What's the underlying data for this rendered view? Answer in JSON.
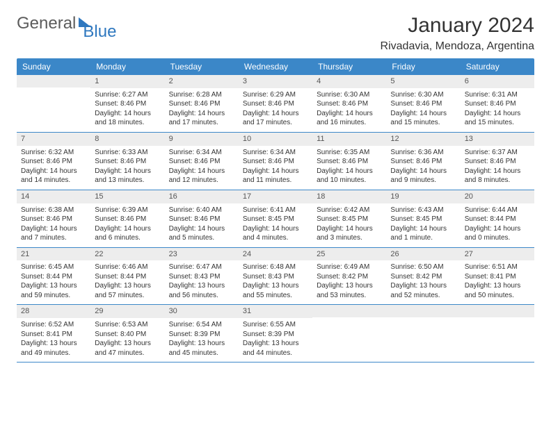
{
  "brand": {
    "first": "General",
    "second": "Blue"
  },
  "header": {
    "title": "January 2024",
    "location": "Rivadavia, Mendoza, Argentina"
  },
  "colors": {
    "header_bg": "#3b87c8",
    "row_border": "#3b87c8",
    "daynum_bg": "#ededed"
  },
  "daysOfWeek": [
    "Sunday",
    "Monday",
    "Tuesday",
    "Wednesday",
    "Thursday",
    "Friday",
    "Saturday"
  ],
  "weeks": [
    [
      {
        "n": "",
        "sr": "",
        "ss": "",
        "dl1": "",
        "dl2": ""
      },
      {
        "n": "1",
        "sr": "Sunrise: 6:27 AM",
        "ss": "Sunset: 8:46 PM",
        "dl1": "Daylight: 14 hours",
        "dl2": "and 18 minutes."
      },
      {
        "n": "2",
        "sr": "Sunrise: 6:28 AM",
        "ss": "Sunset: 8:46 PM",
        "dl1": "Daylight: 14 hours",
        "dl2": "and 17 minutes."
      },
      {
        "n": "3",
        "sr": "Sunrise: 6:29 AM",
        "ss": "Sunset: 8:46 PM",
        "dl1": "Daylight: 14 hours",
        "dl2": "and 17 minutes."
      },
      {
        "n": "4",
        "sr": "Sunrise: 6:30 AM",
        "ss": "Sunset: 8:46 PM",
        "dl1": "Daylight: 14 hours",
        "dl2": "and 16 minutes."
      },
      {
        "n": "5",
        "sr": "Sunrise: 6:30 AM",
        "ss": "Sunset: 8:46 PM",
        "dl1": "Daylight: 14 hours",
        "dl2": "and 15 minutes."
      },
      {
        "n": "6",
        "sr": "Sunrise: 6:31 AM",
        "ss": "Sunset: 8:46 PM",
        "dl1": "Daylight: 14 hours",
        "dl2": "and 15 minutes."
      }
    ],
    [
      {
        "n": "7",
        "sr": "Sunrise: 6:32 AM",
        "ss": "Sunset: 8:46 PM",
        "dl1": "Daylight: 14 hours",
        "dl2": "and 14 minutes."
      },
      {
        "n": "8",
        "sr": "Sunrise: 6:33 AM",
        "ss": "Sunset: 8:46 PM",
        "dl1": "Daylight: 14 hours",
        "dl2": "and 13 minutes."
      },
      {
        "n": "9",
        "sr": "Sunrise: 6:34 AM",
        "ss": "Sunset: 8:46 PM",
        "dl1": "Daylight: 14 hours",
        "dl2": "and 12 minutes."
      },
      {
        "n": "10",
        "sr": "Sunrise: 6:34 AM",
        "ss": "Sunset: 8:46 PM",
        "dl1": "Daylight: 14 hours",
        "dl2": "and 11 minutes."
      },
      {
        "n": "11",
        "sr": "Sunrise: 6:35 AM",
        "ss": "Sunset: 8:46 PM",
        "dl1": "Daylight: 14 hours",
        "dl2": "and 10 minutes."
      },
      {
        "n": "12",
        "sr": "Sunrise: 6:36 AM",
        "ss": "Sunset: 8:46 PM",
        "dl1": "Daylight: 14 hours",
        "dl2": "and 9 minutes."
      },
      {
        "n": "13",
        "sr": "Sunrise: 6:37 AM",
        "ss": "Sunset: 8:46 PM",
        "dl1": "Daylight: 14 hours",
        "dl2": "and 8 minutes."
      }
    ],
    [
      {
        "n": "14",
        "sr": "Sunrise: 6:38 AM",
        "ss": "Sunset: 8:46 PM",
        "dl1": "Daylight: 14 hours",
        "dl2": "and 7 minutes."
      },
      {
        "n": "15",
        "sr": "Sunrise: 6:39 AM",
        "ss": "Sunset: 8:46 PM",
        "dl1": "Daylight: 14 hours",
        "dl2": "and 6 minutes."
      },
      {
        "n": "16",
        "sr": "Sunrise: 6:40 AM",
        "ss": "Sunset: 8:46 PM",
        "dl1": "Daylight: 14 hours",
        "dl2": "and 5 minutes."
      },
      {
        "n": "17",
        "sr": "Sunrise: 6:41 AM",
        "ss": "Sunset: 8:45 PM",
        "dl1": "Daylight: 14 hours",
        "dl2": "and 4 minutes."
      },
      {
        "n": "18",
        "sr": "Sunrise: 6:42 AM",
        "ss": "Sunset: 8:45 PM",
        "dl1": "Daylight: 14 hours",
        "dl2": "and 3 minutes."
      },
      {
        "n": "19",
        "sr": "Sunrise: 6:43 AM",
        "ss": "Sunset: 8:45 PM",
        "dl1": "Daylight: 14 hours",
        "dl2": "and 1 minute."
      },
      {
        "n": "20",
        "sr": "Sunrise: 6:44 AM",
        "ss": "Sunset: 8:44 PM",
        "dl1": "Daylight: 14 hours",
        "dl2": "and 0 minutes."
      }
    ],
    [
      {
        "n": "21",
        "sr": "Sunrise: 6:45 AM",
        "ss": "Sunset: 8:44 PM",
        "dl1": "Daylight: 13 hours",
        "dl2": "and 59 minutes."
      },
      {
        "n": "22",
        "sr": "Sunrise: 6:46 AM",
        "ss": "Sunset: 8:44 PM",
        "dl1": "Daylight: 13 hours",
        "dl2": "and 57 minutes."
      },
      {
        "n": "23",
        "sr": "Sunrise: 6:47 AM",
        "ss": "Sunset: 8:43 PM",
        "dl1": "Daylight: 13 hours",
        "dl2": "and 56 minutes."
      },
      {
        "n": "24",
        "sr": "Sunrise: 6:48 AM",
        "ss": "Sunset: 8:43 PM",
        "dl1": "Daylight: 13 hours",
        "dl2": "and 55 minutes."
      },
      {
        "n": "25",
        "sr": "Sunrise: 6:49 AM",
        "ss": "Sunset: 8:42 PM",
        "dl1": "Daylight: 13 hours",
        "dl2": "and 53 minutes."
      },
      {
        "n": "26",
        "sr": "Sunrise: 6:50 AM",
        "ss": "Sunset: 8:42 PM",
        "dl1": "Daylight: 13 hours",
        "dl2": "and 52 minutes."
      },
      {
        "n": "27",
        "sr": "Sunrise: 6:51 AM",
        "ss": "Sunset: 8:41 PM",
        "dl1": "Daylight: 13 hours",
        "dl2": "and 50 minutes."
      }
    ],
    [
      {
        "n": "28",
        "sr": "Sunrise: 6:52 AM",
        "ss": "Sunset: 8:41 PM",
        "dl1": "Daylight: 13 hours",
        "dl2": "and 49 minutes."
      },
      {
        "n": "29",
        "sr": "Sunrise: 6:53 AM",
        "ss": "Sunset: 8:40 PM",
        "dl1": "Daylight: 13 hours",
        "dl2": "and 47 minutes."
      },
      {
        "n": "30",
        "sr": "Sunrise: 6:54 AM",
        "ss": "Sunset: 8:39 PM",
        "dl1": "Daylight: 13 hours",
        "dl2": "and 45 minutes."
      },
      {
        "n": "31",
        "sr": "Sunrise: 6:55 AM",
        "ss": "Sunset: 8:39 PM",
        "dl1": "Daylight: 13 hours",
        "dl2": "and 44 minutes."
      },
      {
        "n": "",
        "sr": "",
        "ss": "",
        "dl1": "",
        "dl2": ""
      },
      {
        "n": "",
        "sr": "",
        "ss": "",
        "dl1": "",
        "dl2": ""
      },
      {
        "n": "",
        "sr": "",
        "ss": "",
        "dl1": "",
        "dl2": ""
      }
    ]
  ]
}
